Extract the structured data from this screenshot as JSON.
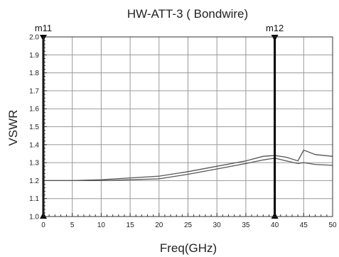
{
  "chart_data": {
    "type": "line",
    "title": "HW-ATT-3 ( Bondwire)",
    "xlabel": "Freq(GHz)",
    "ylabel": "VSWR",
    "xlim": [
      0,
      50
    ],
    "ylim": [
      1.0,
      2.0
    ],
    "x_ticks": [
      "0",
      "5",
      "10",
      "15",
      "20",
      "25",
      "30",
      "35",
      "40",
      "45",
      "50"
    ],
    "y_ticks": [
      "1.0",
      "1.1",
      "1.2",
      "1.3",
      "1.4",
      "1.5",
      "1.6",
      "1.7",
      "1.8",
      "1.9",
      "2.0"
    ],
    "grid": true,
    "colors": {
      "series": "#555555",
      "marker": "#000000",
      "grid": "#9a9a9a"
    },
    "series": [
      {
        "x": [
          0,
          5,
          10,
          15,
          20,
          25,
          30,
          35,
          38,
          40,
          42,
          44,
          45,
          47,
          50
        ],
        "y": [
          1.2,
          1.2,
          1.205,
          1.215,
          1.225,
          1.25,
          1.28,
          1.31,
          1.335,
          1.34,
          1.33,
          1.31,
          1.37,
          1.345,
          1.335
        ]
      },
      {
        "x": [
          0,
          5,
          10,
          15,
          20,
          25,
          30,
          35,
          38,
          40,
          42,
          44,
          45,
          47,
          50
        ],
        "y": [
          1.2,
          1.2,
          1.2,
          1.205,
          1.21,
          1.235,
          1.265,
          1.295,
          1.315,
          1.325,
          1.31,
          1.295,
          1.3,
          1.29,
          1.285
        ]
      }
    ],
    "markers": [
      {
        "label": "m11",
        "x": 0
      },
      {
        "label": "m12",
        "x": 40
      }
    ]
  }
}
